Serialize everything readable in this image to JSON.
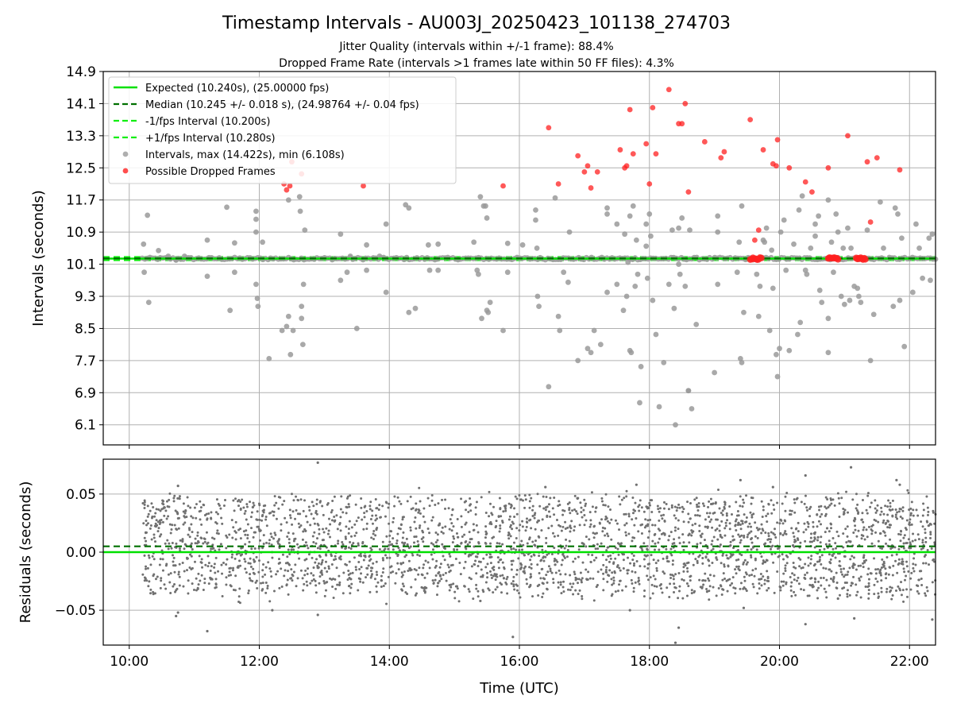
{
  "figure": {
    "title": "Timestamp Intervals - AU003J_20250423_101138_274703",
    "subtitle_1": "Jitter Quality (intervals within +/-1 frame): 88.4%",
    "subtitle_2": "Dropped Frame Rate (intervals >1 frames late within 50 FF files): 4.3%"
  },
  "colors": {
    "expected": "#00e000",
    "median": "#007000",
    "fps_band": "#11ee11",
    "intervals": "#9a9a9a",
    "dropped": "#ff2020",
    "residuals": "#707070",
    "grid": "#b0b0b0"
  },
  "chart_data": [
    {
      "type": "scatter",
      "panel": "top",
      "ylabel": "Intervals (seconds)",
      "xlabel": "",
      "xlim": [
        9.6,
        22.4
      ],
      "ylim": [
        5.6,
        14.9
      ],
      "xticks": [
        10,
        12,
        14,
        16,
        18,
        20,
        22
      ],
      "yticks": [
        6.1,
        6.9,
        7.7,
        8.5,
        9.3,
        10.1,
        10.9,
        11.7,
        12.5,
        13.3,
        14.1,
        14.9
      ],
      "grid": true,
      "legend_position": "upper-left",
      "legend": [
        "Expected (10.240s), (25.00000 fps)",
        "Median (10.245 +/- 0.018 s), (24.98764 +/- 0.04 fps)",
        "-1/fps Interval (10.200s)",
        "+1/fps Interval (10.280s)",
        "Intervals, max (14.422s), min (6.108s)",
        "Possible Dropped Frames"
      ],
      "reference_lines": {
        "expected": 10.24,
        "median": 10.245,
        "minus_1_fps": 10.2,
        "plus_1_fps": 10.28
      },
      "intervals_baseline": {
        "x_start": 10.2,
        "x_end": 22.4,
        "y": 10.24,
        "count": 310
      },
      "intervals_outliers": [
        [
          10.22,
          10.6
        ],
        [
          10.23,
          9.9
        ],
        [
          10.28,
          11.32
        ],
        [
          10.3,
          9.15
        ],
        [
          10.45,
          10.44
        ],
        [
          10.6,
          10.3
        ],
        [
          10.72,
          10.2
        ],
        [
          10.85,
          10.3
        ],
        [
          11.2,
          10.7
        ],
        [
          11.2,
          9.8
        ],
        [
          11.5,
          11.52
        ],
        [
          11.55,
          8.95
        ],
        [
          11.62,
          10.63
        ],
        [
          11.62,
          9.9
        ],
        [
          11.95,
          11.42
        ],
        [
          11.95,
          11.22
        ],
        [
          11.95,
          10.9
        ],
        [
          11.95,
          9.6
        ],
        [
          11.97,
          9.25
        ],
        [
          11.98,
          9.05
        ],
        [
          12.05,
          10.65
        ],
        [
          12.15,
          7.75
        ],
        [
          12.35,
          8.45
        ],
        [
          12.42,
          8.55
        ],
        [
          12.45,
          8.8
        ],
        [
          12.45,
          11.7
        ],
        [
          12.48,
          7.85
        ],
        [
          12.52,
          8.45
        ],
        [
          12.62,
          11.78
        ],
        [
          12.63,
          11.42
        ],
        [
          12.65,
          8.75
        ],
        [
          12.65,
          9.05
        ],
        [
          12.67,
          8.1
        ],
        [
          12.68,
          9.6
        ],
        [
          12.7,
          10.95
        ],
        [
          13.25,
          10.85
        ],
        [
          13.25,
          9.7
        ],
        [
          13.35,
          9.9
        ],
        [
          13.4,
          10.3
        ],
        [
          13.5,
          8.5
        ],
        [
          13.65,
          10.58
        ],
        [
          13.65,
          9.95
        ],
        [
          13.85,
          10.3
        ],
        [
          13.95,
          11.1
        ],
        [
          13.95,
          9.4
        ],
        [
          14.25,
          11.58
        ],
        [
          14.3,
          11.5
        ],
        [
          14.3,
          8.9
        ],
        [
          14.4,
          9.0
        ],
        [
          14.6,
          10.58
        ],
        [
          14.62,
          9.95
        ],
        [
          14.75,
          9.95
        ],
        [
          14.75,
          10.6
        ],
        [
          15.3,
          10.65
        ],
        [
          15.35,
          9.95
        ],
        [
          15.37,
          9.85
        ],
        [
          15.4,
          11.78
        ],
        [
          15.42,
          8.75
        ],
        [
          15.45,
          11.55
        ],
        [
          15.48,
          11.55
        ],
        [
          15.5,
          11.25
        ],
        [
          15.5,
          8.95
        ],
        [
          15.52,
          8.9
        ],
        [
          15.55,
          9.15
        ],
        [
          15.75,
          8.45
        ],
        [
          15.82,
          10.62
        ],
        [
          15.82,
          9.9
        ],
        [
          16.05,
          10.58
        ],
        [
          16.25,
          11.45
        ],
        [
          16.25,
          11.2
        ],
        [
          16.27,
          10.5
        ],
        [
          16.28,
          9.3
        ],
        [
          16.3,
          9.05
        ],
        [
          16.45,
          7.05
        ],
        [
          16.55,
          11.75
        ],
        [
          16.6,
          8.8
        ],
        [
          16.62,
          8.45
        ],
        [
          16.68,
          9.9
        ],
        [
          16.75,
          9.65
        ],
        [
          16.77,
          10.9
        ],
        [
          16.9,
          7.7
        ],
        [
          17.05,
          8.0
        ],
        [
          17.1,
          7.9
        ],
        [
          17.15,
          8.45
        ],
        [
          17.25,
          8.1
        ],
        [
          17.35,
          9.4
        ],
        [
          17.35,
          11.5
        ],
        [
          17.35,
          11.35
        ],
        [
          17.5,
          9.6
        ],
        [
          17.5,
          11.1
        ],
        [
          17.6,
          8.95
        ],
        [
          17.62,
          10.85
        ],
        [
          17.65,
          9.3
        ],
        [
          17.67,
          10.15
        ],
        [
          17.7,
          11.3
        ],
        [
          17.7,
          7.95
        ],
        [
          17.72,
          7.9
        ],
        [
          17.75,
          11.55
        ],
        [
          17.78,
          9.55
        ],
        [
          17.8,
          10.7
        ],
        [
          17.82,
          9.85
        ],
        [
          17.85,
          6.65
        ],
        [
          17.87,
          7.55
        ],
        [
          17.95,
          11.1
        ],
        [
          17.95,
          10.55
        ],
        [
          17.97,
          9.75
        ],
        [
          18.0,
          11.35
        ],
        [
          18.02,
          10.8
        ],
        [
          18.05,
          9.2
        ],
        [
          18.1,
          8.35
        ],
        [
          18.15,
          6.55
        ],
        [
          18.22,
          7.65
        ],
        [
          18.3,
          9.6
        ],
        [
          18.35,
          10.95
        ],
        [
          18.38,
          9.0
        ],
        [
          18.4,
          6.1
        ],
        [
          18.45,
          11.0
        ],
        [
          18.45,
          10.1
        ],
        [
          18.47,
          9.85
        ],
        [
          18.5,
          11.25
        ],
        [
          18.55,
          9.55
        ],
        [
          18.6,
          6.95
        ],
        [
          18.6,
          6.95
        ],
        [
          18.62,
          10.95
        ],
        [
          18.65,
          6.5
        ],
        [
          18.72,
          8.6
        ],
        [
          19.0,
          7.4
        ],
        [
          19.05,
          10.9
        ],
        [
          19.05,
          11.3
        ],
        [
          19.05,
          9.6
        ],
        [
          19.35,
          9.9
        ],
        [
          19.38,
          10.65
        ],
        [
          19.4,
          7.75
        ],
        [
          19.42,
          7.65
        ],
        [
          19.42,
          11.55
        ],
        [
          19.45,
          8.9
        ],
        [
          19.65,
          9.85
        ],
        [
          19.68,
          8.8
        ],
        [
          19.7,
          9.55
        ],
        [
          19.75,
          10.7
        ],
        [
          19.77,
          10.65
        ],
        [
          19.8,
          11.0
        ],
        [
          19.85,
          8.45
        ],
        [
          19.88,
          10.45
        ],
        [
          19.9,
          9.5
        ],
        [
          19.95,
          7.85
        ],
        [
          19.97,
          7.3
        ],
        [
          20.0,
          8.0
        ],
        [
          20.02,
          10.9
        ],
        [
          20.07,
          11.2
        ],
        [
          20.1,
          9.95
        ],
        [
          20.15,
          7.95
        ],
        [
          20.22,
          10.6
        ],
        [
          20.28,
          8.35
        ],
        [
          20.3,
          11.45
        ],
        [
          20.32,
          8.65
        ],
        [
          20.35,
          11.8
        ],
        [
          20.4,
          9.95
        ],
        [
          20.42,
          9.85
        ],
        [
          20.48,
          10.5
        ],
        [
          20.55,
          10.8
        ],
        [
          20.55,
          11.1
        ],
        [
          20.6,
          11.3
        ],
        [
          20.62,
          9.45
        ],
        [
          20.65,
          9.15
        ],
        [
          20.75,
          7.9
        ],
        [
          20.75,
          8.75
        ],
        [
          20.75,
          11.7
        ],
        [
          20.8,
          10.65
        ],
        [
          20.83,
          9.9
        ],
        [
          20.87,
          11.35
        ],
        [
          20.9,
          10.9
        ],
        [
          20.95,
          9.3
        ],
        [
          20.98,
          10.5
        ],
        [
          21.0,
          9.1
        ],
        [
          21.05,
          11.0
        ],
        [
          21.08,
          9.2
        ],
        [
          21.1,
          10.5
        ],
        [
          21.15,
          9.55
        ],
        [
          21.2,
          9.5
        ],
        [
          21.22,
          9.3
        ],
        [
          21.25,
          9.15
        ],
        [
          21.35,
          10.95
        ],
        [
          21.4,
          7.7
        ],
        [
          21.45,
          8.85
        ],
        [
          21.55,
          11.65
        ],
        [
          21.6,
          10.5
        ],
        [
          21.75,
          9.05
        ],
        [
          21.78,
          11.5
        ],
        [
          21.82,
          11.35
        ],
        [
          21.85,
          9.2
        ],
        [
          21.88,
          10.75
        ],
        [
          21.92,
          8.05
        ],
        [
          22.05,
          9.4
        ],
        [
          22.1,
          11.1
        ],
        [
          22.15,
          10.5
        ],
        [
          22.2,
          9.75
        ],
        [
          22.3,
          10.75
        ],
        [
          22.32,
          9.7
        ],
        [
          22.35,
          10.85
        ]
      ],
      "dropped_points": [
        [
          12.38,
          12.1
        ],
        [
          12.42,
          11.95
        ],
        [
          12.47,
          12.05
        ],
        [
          12.5,
          12.65
        ],
        [
          12.65,
          12.35
        ],
        [
          13.6,
          12.05
        ],
        [
          15.75,
          12.05
        ],
        [
          16.45,
          13.5
        ],
        [
          16.6,
          12.1
        ],
        [
          16.9,
          12.8
        ],
        [
          17.0,
          12.4
        ],
        [
          17.05,
          12.55
        ],
        [
          17.1,
          12.0
        ],
        [
          17.2,
          12.4
        ],
        [
          17.55,
          12.95
        ],
        [
          17.62,
          12.5
        ],
        [
          17.65,
          12.55
        ],
        [
          17.7,
          13.95
        ],
        [
          17.75,
          12.85
        ],
        [
          17.95,
          13.1
        ],
        [
          18.0,
          12.1
        ],
        [
          18.05,
          14.0
        ],
        [
          18.1,
          12.85
        ],
        [
          18.3,
          14.45
        ],
        [
          18.45,
          13.6
        ],
        [
          18.5,
          13.6
        ],
        [
          18.55,
          14.1
        ],
        [
          18.6,
          11.9
        ],
        [
          18.85,
          13.15
        ],
        [
          19.1,
          12.75
        ],
        [
          19.15,
          12.9
        ],
        [
          19.55,
          13.7
        ],
        [
          19.62,
          10.7
        ],
        [
          19.68,
          10.95
        ],
        [
          19.75,
          12.95
        ],
        [
          19.9,
          12.6
        ],
        [
          19.95,
          12.55
        ],
        [
          19.97,
          13.2
        ],
        [
          20.15,
          12.5
        ],
        [
          20.4,
          12.15
        ],
        [
          20.5,
          11.9
        ],
        [
          20.75,
          12.5
        ],
        [
          21.05,
          13.3
        ],
        [
          21.35,
          12.65
        ],
        [
          21.4,
          11.15
        ],
        [
          21.5,
          12.75
        ],
        [
          21.85,
          12.45
        ]
      ],
      "dropped_clusters": [
        {
          "x_start": 19.55,
          "x_end": 19.72,
          "y": 10.24
        },
        {
          "x_start": 20.75,
          "x_end": 20.9,
          "y": 10.24
        },
        {
          "x_start": 21.18,
          "x_end": 21.32,
          "y": 10.24
        }
      ]
    },
    {
      "type": "scatter",
      "panel": "bottom",
      "ylabel": "Residuals (seconds)",
      "xlabel": "Time (UTC)",
      "xlim": [
        9.6,
        22.4
      ],
      "ylim": [
        -0.08,
        0.08
      ],
      "yticks": [
        -0.05,
        0.0,
        0.05
      ],
      "ytick_labels": [
        "−0.05",
        "0.00",
        "0.05"
      ],
      "xticks": [
        10,
        12,
        14,
        16,
        18,
        20,
        22
      ],
      "xtick_labels": [
        "10:00",
        "12:00",
        "14:00",
        "16:00",
        "18:00",
        "20:00",
        "22:00"
      ],
      "grid": true,
      "reference_lines": {
        "expected": 0.0,
        "median": 0.005
      },
      "residual_distribution": {
        "x_start": 10.2,
        "x_end": 22.4,
        "count": 3000,
        "mean": 0.005,
        "spread": 0.045
      },
      "residual_outliers": [
        [
          10.72,
          -0.055
        ],
        [
          10.75,
          -0.052
        ],
        [
          10.75,
          0.057
        ],
        [
          11.2,
          -0.068
        ],
        [
          12.2,
          -0.05
        ],
        [
          12.9,
          0.077
        ],
        [
          12.9,
          -0.054
        ],
        [
          15.4,
          -0.042
        ],
        [
          15.9,
          -0.073
        ],
        [
          16.4,
          0.056
        ],
        [
          17.7,
          -0.05
        ],
        [
          17.8,
          0.058
        ],
        [
          18.4,
          -0.078
        ],
        [
          18.45,
          -0.065
        ],
        [
          19.4,
          0.062
        ],
        [
          19.45,
          -0.048
        ],
        [
          19.9,
          0.056
        ],
        [
          20.4,
          0.066
        ],
        [
          20.4,
          -0.062
        ],
        [
          20.9,
          -0.04
        ],
        [
          21.1,
          0.073
        ],
        [
          21.15,
          -0.057
        ],
        [
          21.8,
          0.062
        ],
        [
          21.85,
          0.058
        ],
        [
          22.35,
          -0.058
        ]
      ]
    }
  ]
}
